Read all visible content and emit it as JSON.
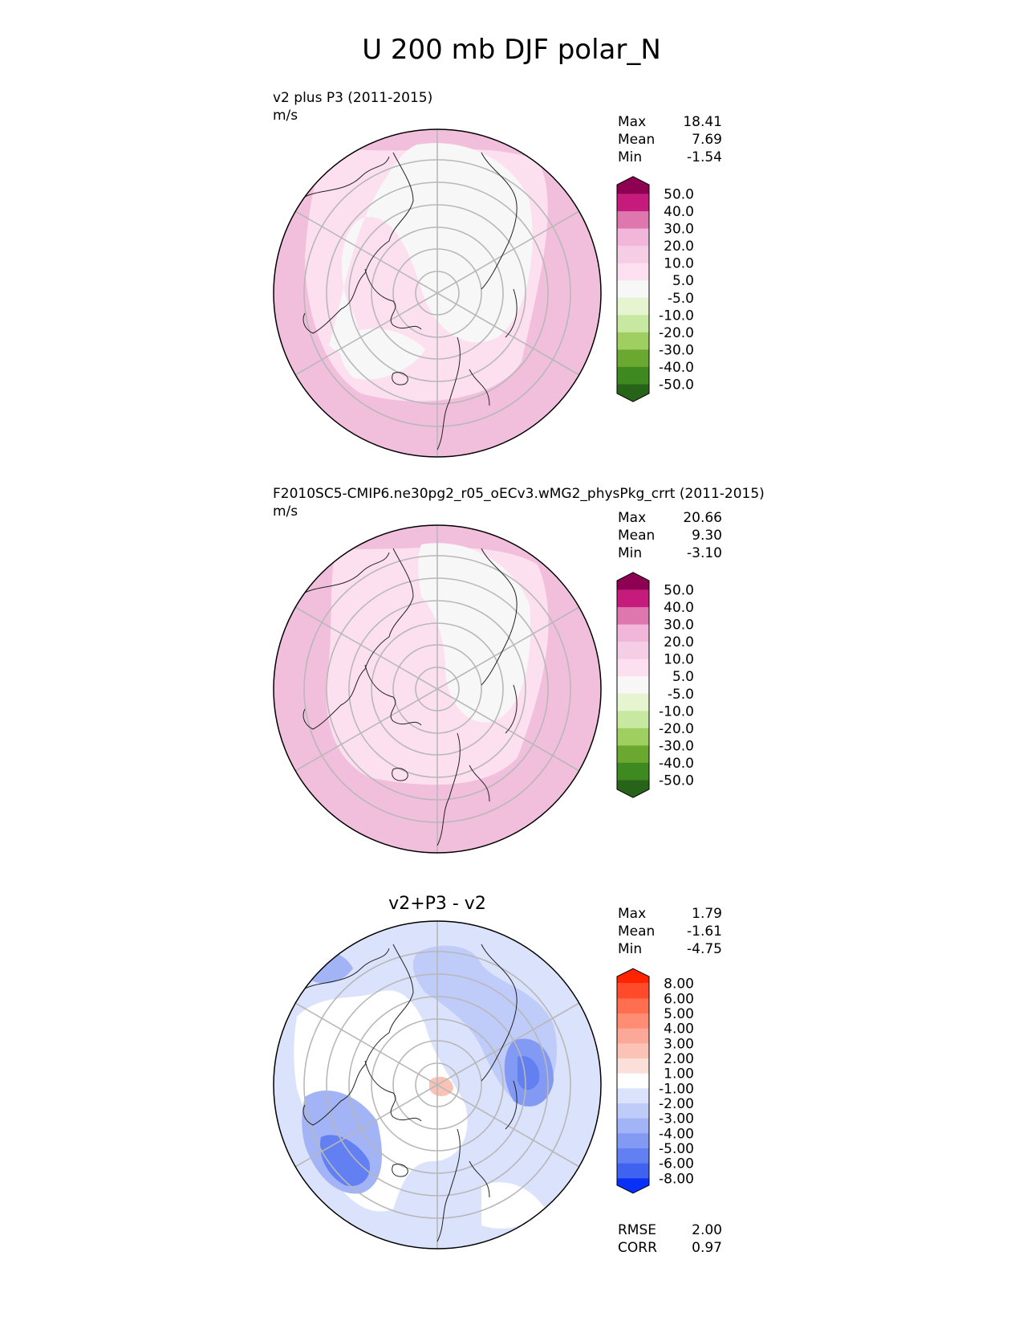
{
  "suptitle": "U 200 mb DJF polar_N",
  "panels": [
    {
      "title_line1": "v2 plus P3 (2011-2015)",
      "title_line2": "m/s",
      "stats": [
        {
          "label": "Max",
          "value": "18.41"
        },
        {
          "label": "Mean",
          "value": "7.69"
        },
        {
          "label": "Min",
          "value": "-1.54"
        }
      ],
      "colorbar": {
        "tick_labels": [
          "50.0",
          "40.0",
          "30.0",
          "20.0",
          "10.0",
          "5.0",
          "-5.0",
          "-10.0",
          "-20.0",
          "-30.0",
          "-40.0",
          "-50.0"
        ],
        "colors": [
          "#8e0152",
          "#c51b7d",
          "#de77ae",
          "#f1b6da",
          "#f5cde5",
          "#fde0ef",
          "#f7f7f7",
          "#e6f5d0",
          "#c7e8a0",
          "#9ecf60",
          "#6aa830",
          "#3f8a20",
          "#276419"
        ]
      }
    },
    {
      "title_line1": "F2010SC5-CMIP6.ne30pg2_r05_oECv3.wMG2_physPkg_crrt (2011-2015)",
      "title_line2": "m/s",
      "stats": [
        {
          "label": "Max",
          "value": "20.66"
        },
        {
          "label": "Mean",
          "value": "9.30"
        },
        {
          "label": "Min",
          "value": "-3.10"
        }
      ],
      "colorbar": {
        "tick_labels": [
          "50.0",
          "40.0",
          "30.0",
          "20.0",
          "10.0",
          "5.0",
          "-5.0",
          "-10.0",
          "-20.0",
          "-30.0",
          "-40.0",
          "-50.0"
        ],
        "colors": [
          "#8e0152",
          "#c51b7d",
          "#de77ae",
          "#f1b6da",
          "#f5cde5",
          "#fde0ef",
          "#f7f7f7",
          "#e6f5d0",
          "#c7e8a0",
          "#9ecf60",
          "#6aa830",
          "#3f8a20",
          "#276419"
        ]
      }
    },
    {
      "title_center": "v2+P3 - v2",
      "stats": [
        {
          "label": "Max",
          "value": "1.79"
        },
        {
          "label": "Mean",
          "value": "-1.61"
        },
        {
          "label": "Min",
          "value": "-4.75"
        }
      ],
      "colorbar": {
        "tick_labels": [
          "8.00",
          "6.00",
          "5.00",
          "4.00",
          "3.00",
          "2.00",
          "1.00",
          "-1.00",
          "-2.00",
          "-3.00",
          "-4.00",
          "-5.00",
          "-6.00",
          "-8.00"
        ],
        "colors": [
          "#ff2400",
          "#ff4b2a",
          "#ff6e4f",
          "#ff8c73",
          "#fca898",
          "#fbc3b6",
          "#fbe0d9",
          "#ffffff",
          "#dbe2fb",
          "#bfcbf8",
          "#a2b3f6",
          "#839af4",
          "#6280f2",
          "#3f62f0",
          "#0830f7"
        ]
      },
      "footer_stats": [
        {
          "label": "RMSE",
          "value": "2.00"
        },
        {
          "label": "CORR",
          "value": "0.97"
        }
      ]
    }
  ],
  "chart_data": {
    "type": "heatmap",
    "title": "U 200 mb DJF polar_N",
    "projection": "north polar stereographic",
    "units": "m/s",
    "panels": [
      {
        "name": "v2 plus P3 (2011-2015)",
        "max": 18.41,
        "mean": 7.69,
        "min": -1.54,
        "levels": [
          -50,
          -40,
          -30,
          -20,
          -10,
          -5,
          5,
          10,
          20,
          30,
          40,
          50
        ],
        "extend": "both"
      },
      {
        "name": "F2010SC5-CMIP6.ne30pg2_r05_oECv3.wMG2_physPkg_crrt (2011-2015)",
        "max": 20.66,
        "mean": 9.3,
        "min": -3.1,
        "levels": [
          -50,
          -40,
          -30,
          -20,
          -10,
          -5,
          5,
          10,
          20,
          30,
          40,
          50
        ],
        "extend": "both"
      },
      {
        "name": "v2+P3 - v2",
        "max": 1.79,
        "mean": -1.61,
        "min": -4.75,
        "levels": [
          -8,
          -6,
          -5,
          -4,
          -3,
          -2,
          -1,
          1,
          2,
          3,
          4,
          5,
          6,
          8
        ],
        "extend": "both",
        "rmse": 2.0,
        "corr": 0.97
      }
    ]
  }
}
